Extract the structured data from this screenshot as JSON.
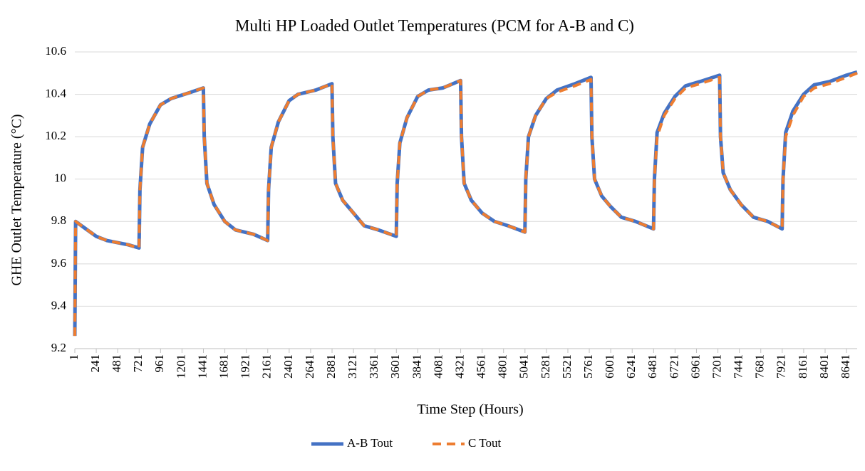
{
  "chart_data": {
    "type": "line",
    "title": "Multi HP Loaded Outlet Temperatures (PCM for A-B and C)",
    "x_label": "Time Step (Hours)",
    "y_label": "GHE Outlet Temperature (°C)",
    "x": [
      1,
      10,
      240,
      360,
      600,
      720,
      730,
      760,
      840,
      960,
      1080,
      1300,
      1440,
      1450,
      1480,
      1560,
      1680,
      1800,
      2000,
      2160,
      2170,
      2200,
      2280,
      2400,
      2500,
      2700,
      2880,
      2890,
      2920,
      3000,
      3120,
      3240,
      3400,
      3600,
      3610,
      3640,
      3720,
      3840,
      3960,
      4120,
      4320,
      4330,
      4360,
      4440,
      4560,
      4700,
      4850,
      5040,
      5050,
      5080,
      5160,
      5280,
      5400,
      5600,
      5780,
      5790,
      5820,
      5900,
      6000,
      6120,
      6280,
      6480,
      6490,
      6520,
      6600,
      6720,
      6840,
      7000,
      7220,
      7230,
      7260,
      7340,
      7460,
      7600,
      7760,
      7920,
      7930,
      7960,
      8040,
      8160,
      8280,
      8450,
      8640,
      8760
    ],
    "series": [
      {
        "name": "A-B Tout",
        "color": "#4472c4",
        "style": "solid",
        "values": [
          9.26,
          9.8,
          9.73,
          9.71,
          9.69,
          9.675,
          9.95,
          10.15,
          10.26,
          10.35,
          10.38,
          10.41,
          10.43,
          10.2,
          9.98,
          9.88,
          9.8,
          9.76,
          9.74,
          9.71,
          9.95,
          10.15,
          10.27,
          10.37,
          10.4,
          10.42,
          10.45,
          10.2,
          9.98,
          9.9,
          9.84,
          9.78,
          9.76,
          9.73,
          9.98,
          10.17,
          10.29,
          10.39,
          10.42,
          10.43,
          10.465,
          10.2,
          9.98,
          9.9,
          9.84,
          9.8,
          9.78,
          9.75,
          10.0,
          10.2,
          10.3,
          10.38,
          10.42,
          10.45,
          10.48,
          10.2,
          10.0,
          9.92,
          9.87,
          9.82,
          9.8,
          9.765,
          10.0,
          10.22,
          10.31,
          10.39,
          10.44,
          10.46,
          10.49,
          10.2,
          10.03,
          9.95,
          9.88,
          9.82,
          9.8,
          9.765,
          10.0,
          10.22,
          10.32,
          10.4,
          10.445,
          10.46,
          10.49,
          10.505
        ]
      },
      {
        "name": "C Tout",
        "color": "#ed7d31",
        "style": "dashed",
        "values": [
          9.26,
          9.8,
          9.73,
          9.71,
          9.69,
          9.675,
          9.95,
          10.15,
          10.26,
          10.35,
          10.38,
          10.41,
          10.43,
          10.2,
          9.98,
          9.88,
          9.8,
          9.76,
          9.74,
          9.71,
          9.95,
          10.15,
          10.27,
          10.37,
          10.4,
          10.42,
          10.45,
          10.2,
          9.98,
          9.9,
          9.84,
          9.78,
          9.76,
          9.73,
          9.98,
          10.17,
          10.29,
          10.39,
          10.42,
          10.43,
          10.465,
          10.2,
          9.98,
          9.9,
          9.84,
          9.8,
          9.78,
          9.75,
          10.0,
          10.2,
          10.3,
          10.38,
          10.41,
          10.44,
          10.47,
          10.2,
          10.0,
          9.92,
          9.87,
          9.82,
          9.8,
          9.765,
          10.0,
          10.2,
          10.3,
          10.38,
          10.43,
          10.45,
          10.48,
          10.2,
          10.03,
          9.95,
          9.88,
          9.82,
          9.8,
          9.765,
          10.0,
          10.2,
          10.3,
          10.39,
          10.43,
          10.45,
          10.48,
          10.5
        ]
      }
    ],
    "xlim": [
      1,
      8760
    ],
    "xticks": [
      1,
      241,
      481,
      721,
      961,
      1201,
      1441,
      1681,
      1921,
      2161,
      2401,
      2641,
      2881,
      3121,
      3361,
      3601,
      3841,
      4081,
      4321,
      4561,
      4801,
      5041,
      5281,
      5521,
      5761,
      6001,
      6241,
      6481,
      6721,
      6961,
      7201,
      7441,
      7681,
      7921,
      8161,
      8401,
      8641
    ],
    "ylim": [
      9.2,
      10.6
    ],
    "yticks": [
      9.2,
      9.4,
      9.6,
      9.8,
      10,
      10.2,
      10.4,
      10.6
    ],
    "grid": true,
    "legend": "bottom"
  }
}
